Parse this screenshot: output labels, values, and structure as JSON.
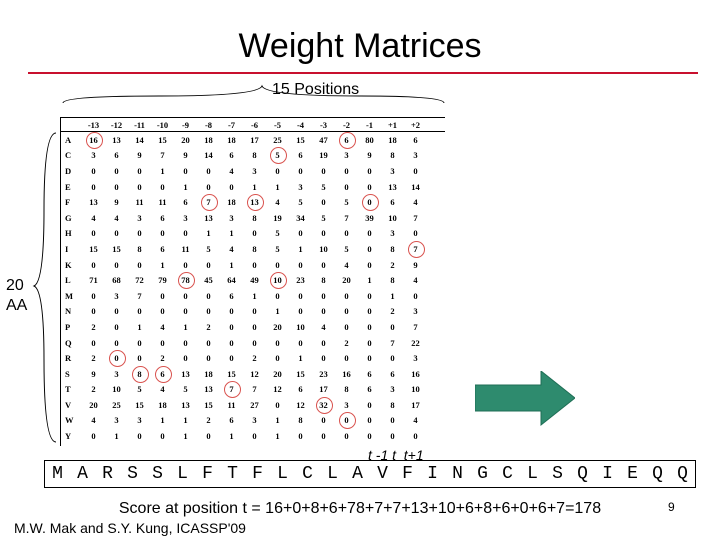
{
  "title": "Weight Matrices",
  "positions_label": "15 Positions",
  "aa_label": "20\nAA",
  "matrix": {
    "positions": [
      "-13",
      "-12",
      "-11",
      "-10",
      "-9",
      "-8",
      "-7",
      "-6",
      "-5",
      "-4",
      "-3",
      "-2",
      "-1",
      "+1",
      "+2"
    ],
    "rows": [
      {
        "aa": "A",
        "values": [
          "16",
          "13",
          "14",
          "15",
          "20",
          "18",
          "18",
          "17",
          "25",
          "15",
          "47",
          "6",
          "80",
          "18",
          "6"
        ]
      },
      {
        "aa": "C",
        "values": [
          "3",
          "6",
          "9",
          "7",
          "9",
          "14",
          "6",
          "8",
          "5",
          "6",
          "19",
          "3",
          "9",
          "8",
          "3"
        ]
      },
      {
        "aa": "D",
        "values": [
          "0",
          "0",
          "0",
          "1",
          "0",
          "0",
          "4",
          "3",
          "0",
          "0",
          "0",
          "0",
          "0",
          "3",
          "0"
        ]
      },
      {
        "aa": "E",
        "values": [
          "0",
          "0",
          "0",
          "0",
          "1",
          "0",
          "0",
          "1",
          "1",
          "3",
          "5",
          "0",
          "0",
          "13",
          "14"
        ]
      },
      {
        "aa": "F",
        "values": [
          "13",
          "9",
          "11",
          "11",
          "6",
          "7",
          "18",
          "13",
          "4",
          "5",
          "0",
          "5",
          "0",
          "6",
          "4"
        ]
      },
      {
        "aa": "G",
        "values": [
          "4",
          "4",
          "3",
          "6",
          "3",
          "13",
          "3",
          "8",
          "19",
          "34",
          "5",
          "7",
          "39",
          "10",
          "7"
        ]
      },
      {
        "aa": "H",
        "values": [
          "0",
          "0",
          "0",
          "0",
          "0",
          "1",
          "1",
          "0",
          "5",
          "0",
          "0",
          "0",
          "0",
          "3",
          "0"
        ]
      },
      {
        "aa": "I",
        "values": [
          "15",
          "15",
          "8",
          "6",
          "11",
          "5",
          "4",
          "8",
          "5",
          "1",
          "10",
          "5",
          "0",
          "8",
          "7"
        ]
      },
      {
        "aa": "K",
        "values": [
          "0",
          "0",
          "0",
          "1",
          "0",
          "0",
          "1",
          "0",
          "0",
          "0",
          "0",
          "4",
          "0",
          "2",
          "9"
        ]
      },
      {
        "aa": "L",
        "values": [
          "71",
          "68",
          "72",
          "79",
          "78",
          "45",
          "64",
          "49",
          "10",
          "23",
          "8",
          "20",
          "1",
          "8",
          "4"
        ]
      },
      {
        "aa": "M",
        "values": [
          "0",
          "3",
          "7",
          "0",
          "0",
          "0",
          "6",
          "1",
          "0",
          "0",
          "0",
          "0",
          "0",
          "1",
          "0"
        ]
      },
      {
        "aa": "N",
        "values": [
          "0",
          "0",
          "0",
          "0",
          "0",
          "0",
          "0",
          "0",
          "1",
          "0",
          "0",
          "0",
          "0",
          "2",
          "3"
        ]
      },
      {
        "aa": "P",
        "values": [
          "2",
          "0",
          "1",
          "4",
          "1",
          "2",
          "0",
          "0",
          "20",
          "10",
          "4",
          "0",
          "0",
          "0",
          "7"
        ]
      },
      {
        "aa": "Q",
        "values": [
          "0",
          "0",
          "0",
          "0",
          "0",
          "0",
          "0",
          "0",
          "0",
          "0",
          "0",
          "2",
          "0",
          "7",
          "22"
        ]
      },
      {
        "aa": "R",
        "values": [
          "2",
          "0",
          "0",
          "2",
          "0",
          "0",
          "0",
          "2",
          "0",
          "1",
          "0",
          "0",
          "0",
          "0",
          "3"
        ]
      },
      {
        "aa": "S",
        "values": [
          "9",
          "3",
          "8",
          "6",
          "13",
          "18",
          "15",
          "12",
          "20",
          "15",
          "23",
          "16",
          "6",
          "6",
          "16"
        ]
      },
      {
        "aa": "T",
        "values": [
          "2",
          "10",
          "5",
          "4",
          "5",
          "13",
          "7",
          "7",
          "12",
          "6",
          "17",
          "8",
          "6",
          "3",
          "10"
        ]
      },
      {
        "aa": "V",
        "values": [
          "20",
          "25",
          "15",
          "18",
          "13",
          "15",
          "11",
          "27",
          "0",
          "12",
          "32",
          "3",
          "0",
          "8",
          "17"
        ]
      },
      {
        "aa": "W",
        "values": [
          "4",
          "3",
          "3",
          "1",
          "1",
          "2",
          "6",
          "3",
          "1",
          "8",
          "0",
          "0",
          "0",
          "0",
          "4"
        ]
      },
      {
        "aa": "Y",
        "values": [
          "0",
          "1",
          "0",
          "0",
          "1",
          "0",
          "1",
          "0",
          "1",
          "0",
          "0",
          "0",
          "0",
          "0",
          "0"
        ]
      }
    ],
    "highlights": [
      {
        "aa": "A",
        "pos": "-13"
      },
      {
        "aa": "C",
        "pos": "-5"
      },
      {
        "aa": "A",
        "pos": "-2"
      },
      {
        "aa": "F",
        "pos": "-8"
      },
      {
        "aa": "F",
        "pos": "-6"
      },
      {
        "aa": "F",
        "pos": "-1"
      },
      {
        "aa": "I",
        "pos": "+2"
      },
      {
        "aa": "L",
        "pos": "-9"
      },
      {
        "aa": "L",
        "pos": "-5"
      },
      {
        "aa": "R",
        "pos": "-12"
      },
      {
        "aa": "S",
        "pos": "-11"
      },
      {
        "aa": "S",
        "pos": "-10"
      },
      {
        "aa": "T",
        "pos": "-7"
      },
      {
        "aa": "V",
        "pos": "-3"
      },
      {
        "aa": "W",
        "pos": "-2"
      }
    ]
  },
  "t_labels": "t -1 t  t+1",
  "sequence": [
    "M",
    "A",
    "R",
    "S",
    "S",
    "L",
    "F",
    "T",
    "F",
    "L",
    "C",
    "L",
    "A",
    "V",
    "F",
    "I",
    "N",
    "G",
    "C",
    "L",
    "S",
    "Q",
    "I",
    "E",
    "Q",
    "Q"
  ],
  "score_text": "Score at position t = 16+0+8+6+78+7+7+13+10+6+8+6+0+6+7=178",
  "citation": "M.W. Mak and S.Y. Kung, ICASSP'09",
  "page_number": "9",
  "colors": {
    "title_rule": "#c8102e",
    "arrow": "#2e8b6e",
    "highlight": "#d9534f"
  }
}
